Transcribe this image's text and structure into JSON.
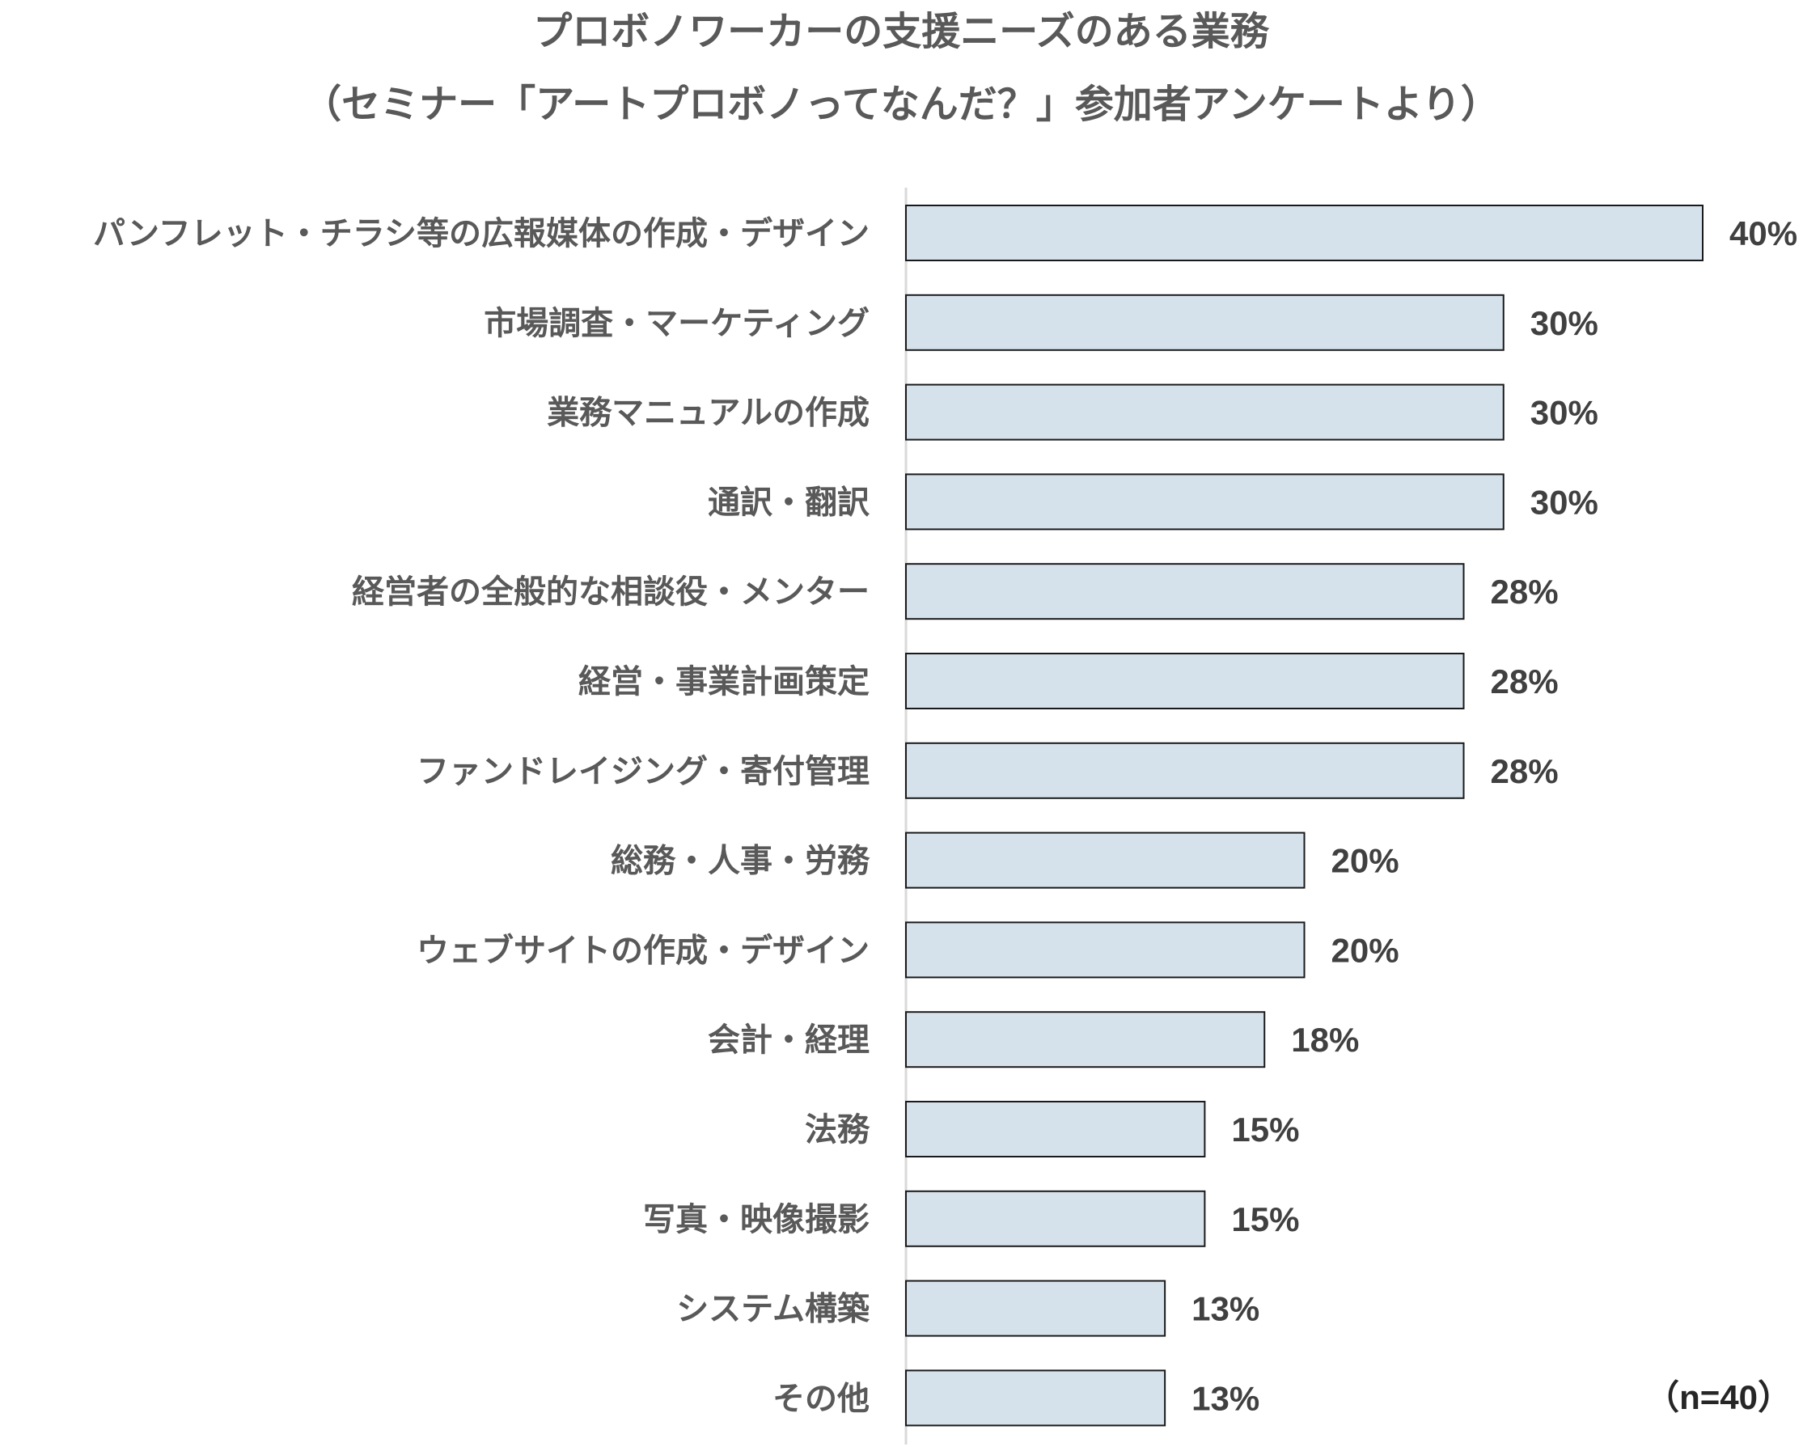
{
  "chart_data": {
    "type": "bar",
    "orientation": "horizontal",
    "title": "プロボノワーカーの支援ニーズのある業務",
    "subtitle": "（セミナー「アートプロボノってなんだ？」参加者アンケートより）",
    "categories": [
      "パンフレット・チラシ等の広報媒体の作成・デザイン",
      "市場調査・マーケティング",
      "業務マニュアルの作成",
      "通訳・翻訳",
      "経営者の全般的な相談役・メンター",
      "経営・事業計画策定",
      "ファンドレイジング・寄付管理",
      "総務・人事・労務",
      "ウェブサイトの作成・デザイン",
      "会計・経理",
      "法務",
      "写真・映像撮影",
      "システム構築",
      "その他"
    ],
    "values": [
      40,
      30,
      30,
      30,
      28,
      28,
      28,
      20,
      20,
      18,
      15,
      15,
      13,
      13
    ],
    "value_labels": [
      "40%",
      "30%",
      "30%",
      "30%",
      "28%",
      "28%",
      "28%",
      "20%",
      "20%",
      "18%",
      "15%",
      "15%",
      "13%",
      "13%"
    ],
    "unit": "%",
    "xlim": [
      0,
      40
    ],
    "grid": false,
    "legend": "none",
    "note": "（n=40）",
    "colors": {
      "bar_fill": "#d6e2eb",
      "bar_stroke": "#1a1a1a",
      "axis": "#d9d9d9"
    }
  }
}
